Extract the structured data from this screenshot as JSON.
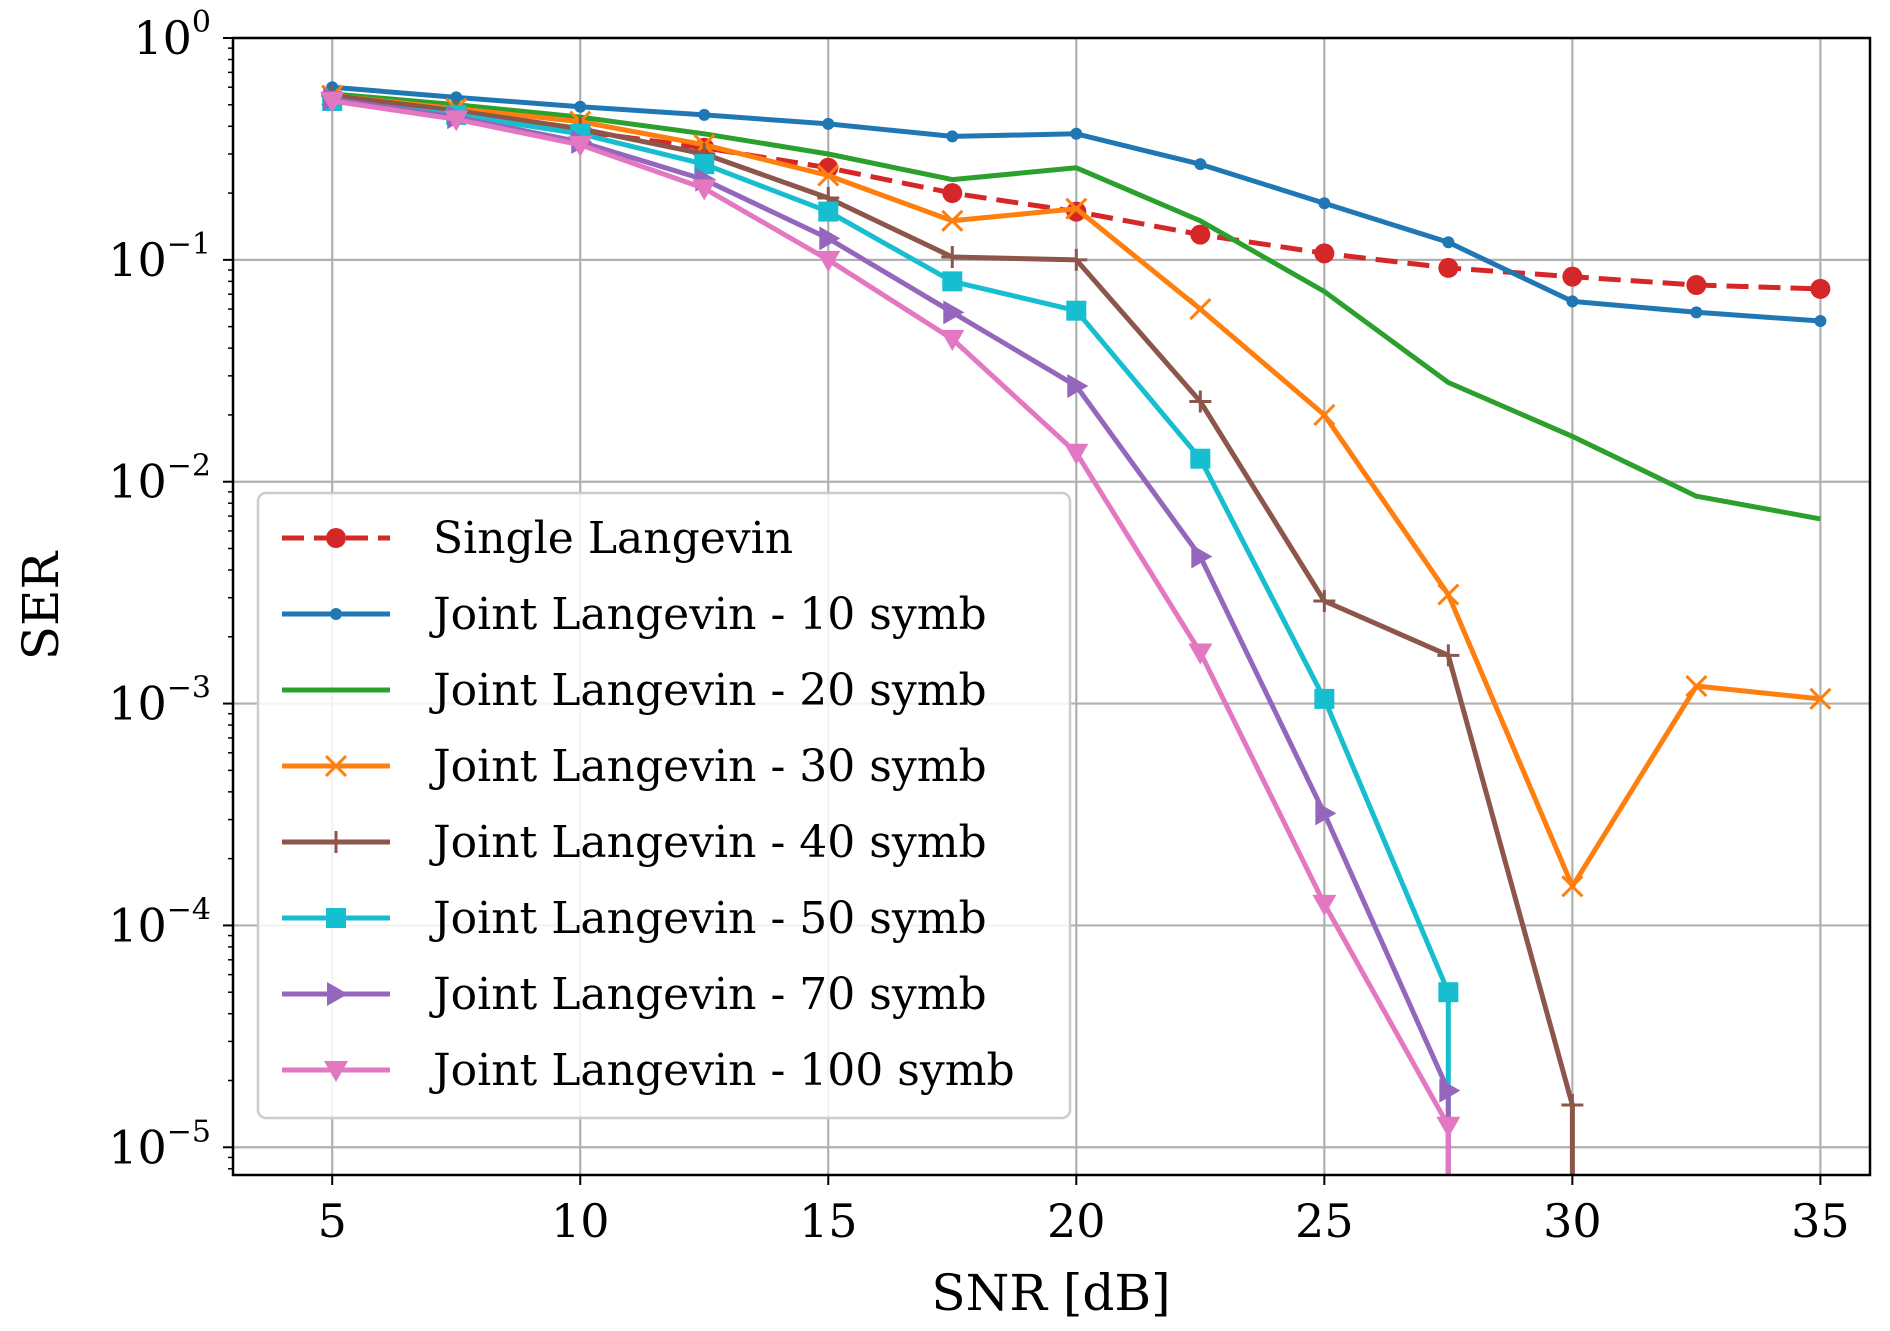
{
  "chart_data": {
    "type": "line",
    "title": "",
    "xlabel": "SNR [dB]",
    "ylabel": "SER",
    "xscale": "linear",
    "yscale": "log",
    "xlim": [
      3,
      36
    ],
    "ylim": [
      7.5e-06,
      1
    ],
    "xticks": [
      5,
      10,
      15,
      20,
      25,
      30,
      35
    ],
    "xtick_labels": [
      "5",
      "10",
      "15",
      "20",
      "25",
      "30",
      "35"
    ],
    "yticks": [
      {
        "value": 1,
        "base": "10",
        "exp": "0"
      },
      {
        "value": 0.1,
        "base": "10",
        "exp": "−1"
      },
      {
        "value": 0.01,
        "base": "10",
        "exp": "−2"
      },
      {
        "value": 0.001,
        "base": "10",
        "exp": "−3"
      },
      {
        "value": 0.0001,
        "base": "10",
        "exp": "−4"
      },
      {
        "value": 1e-05,
        "base": "10",
        "exp": "−5"
      }
    ],
    "grid": true,
    "legend_position": "lower-left",
    "x": [
      5,
      7.5,
      10,
      12.5,
      15,
      17.5,
      20,
      22.5,
      25,
      27.5,
      30,
      32.5,
      35
    ],
    "series": [
      {
        "name": "Single Langevin",
        "color": "#d62728",
        "dash": "dashed",
        "marker": "circle",
        "values": [
          0.53,
          0.45,
          0.38,
          0.32,
          0.26,
          0.2,
          0.165,
          0.13,
          0.107,
          0.092,
          0.084,
          0.077,
          0.074
        ]
      },
      {
        "name": "Joint Langevin - 10 symb",
        "color": "#1f77b4",
        "dash": "solid",
        "marker": "dot",
        "values": [
          0.6,
          0.54,
          0.49,
          0.45,
          0.41,
          0.36,
          0.37,
          0.27,
          0.18,
          0.12,
          0.065,
          0.058,
          0.053
        ]
      },
      {
        "name": "Joint Langevin - 20 symb",
        "color": "#2ca02c",
        "dash": "solid",
        "marker": "none",
        "values": [
          0.56,
          0.5,
          0.44,
          0.37,
          0.3,
          0.23,
          0.26,
          0.15,
          0.072,
          0.028,
          0.016,
          0.0086,
          0.0068
        ]
      },
      {
        "name": "Joint Langevin - 30 symb",
        "color": "#ff7f0e",
        "dash": "solid",
        "marker": "x",
        "values": [
          0.55,
          0.48,
          0.42,
          0.33,
          0.24,
          0.15,
          0.17,
          0.06,
          0.02,
          0.0031,
          0.00015,
          0.0012,
          0.00105
        ]
      },
      {
        "name": "Joint Langevin - 40 symb",
        "color": "#8c564b",
        "dash": "solid",
        "marker": "plus",
        "values": [
          0.55,
          0.47,
          0.39,
          0.3,
          0.19,
          0.103,
          0.1,
          0.023,
          0.0029,
          0.00165,
          1.55e-05,
          null,
          null
        ],
        "drop_to_floor_after": 30
      },
      {
        "name": "Joint Langevin - 50 symb",
        "color": "#17becf",
        "dash": "solid",
        "marker": "square",
        "values": [
          0.52,
          0.45,
          0.37,
          0.27,
          0.165,
          0.08,
          0.059,
          0.0127,
          0.00105,
          5e-05,
          null,
          null,
          null
        ],
        "drop_to_floor_after": 27.5
      },
      {
        "name": "Joint Langevin - 70 symb",
        "color": "#9467bd",
        "dash": "solid",
        "marker": "triangle-right",
        "values": [
          0.53,
          0.44,
          0.34,
          0.23,
          0.125,
          0.058,
          0.027,
          0.0046,
          0.00032,
          1.8e-05,
          null,
          null,
          null
        ],
        "drop_to_floor_after": 27.5
      },
      {
        "name": "Joint Langevin - 100 symb",
        "color": "#e377c2",
        "dash": "solid",
        "marker": "triangle-down",
        "values": [
          0.52,
          0.43,
          0.33,
          0.21,
          0.1,
          0.044,
          0.0135,
          0.0017,
          0.000125,
          1.25e-05,
          null,
          null,
          null
        ],
        "drop_to_floor_after": 27.5
      }
    ]
  }
}
